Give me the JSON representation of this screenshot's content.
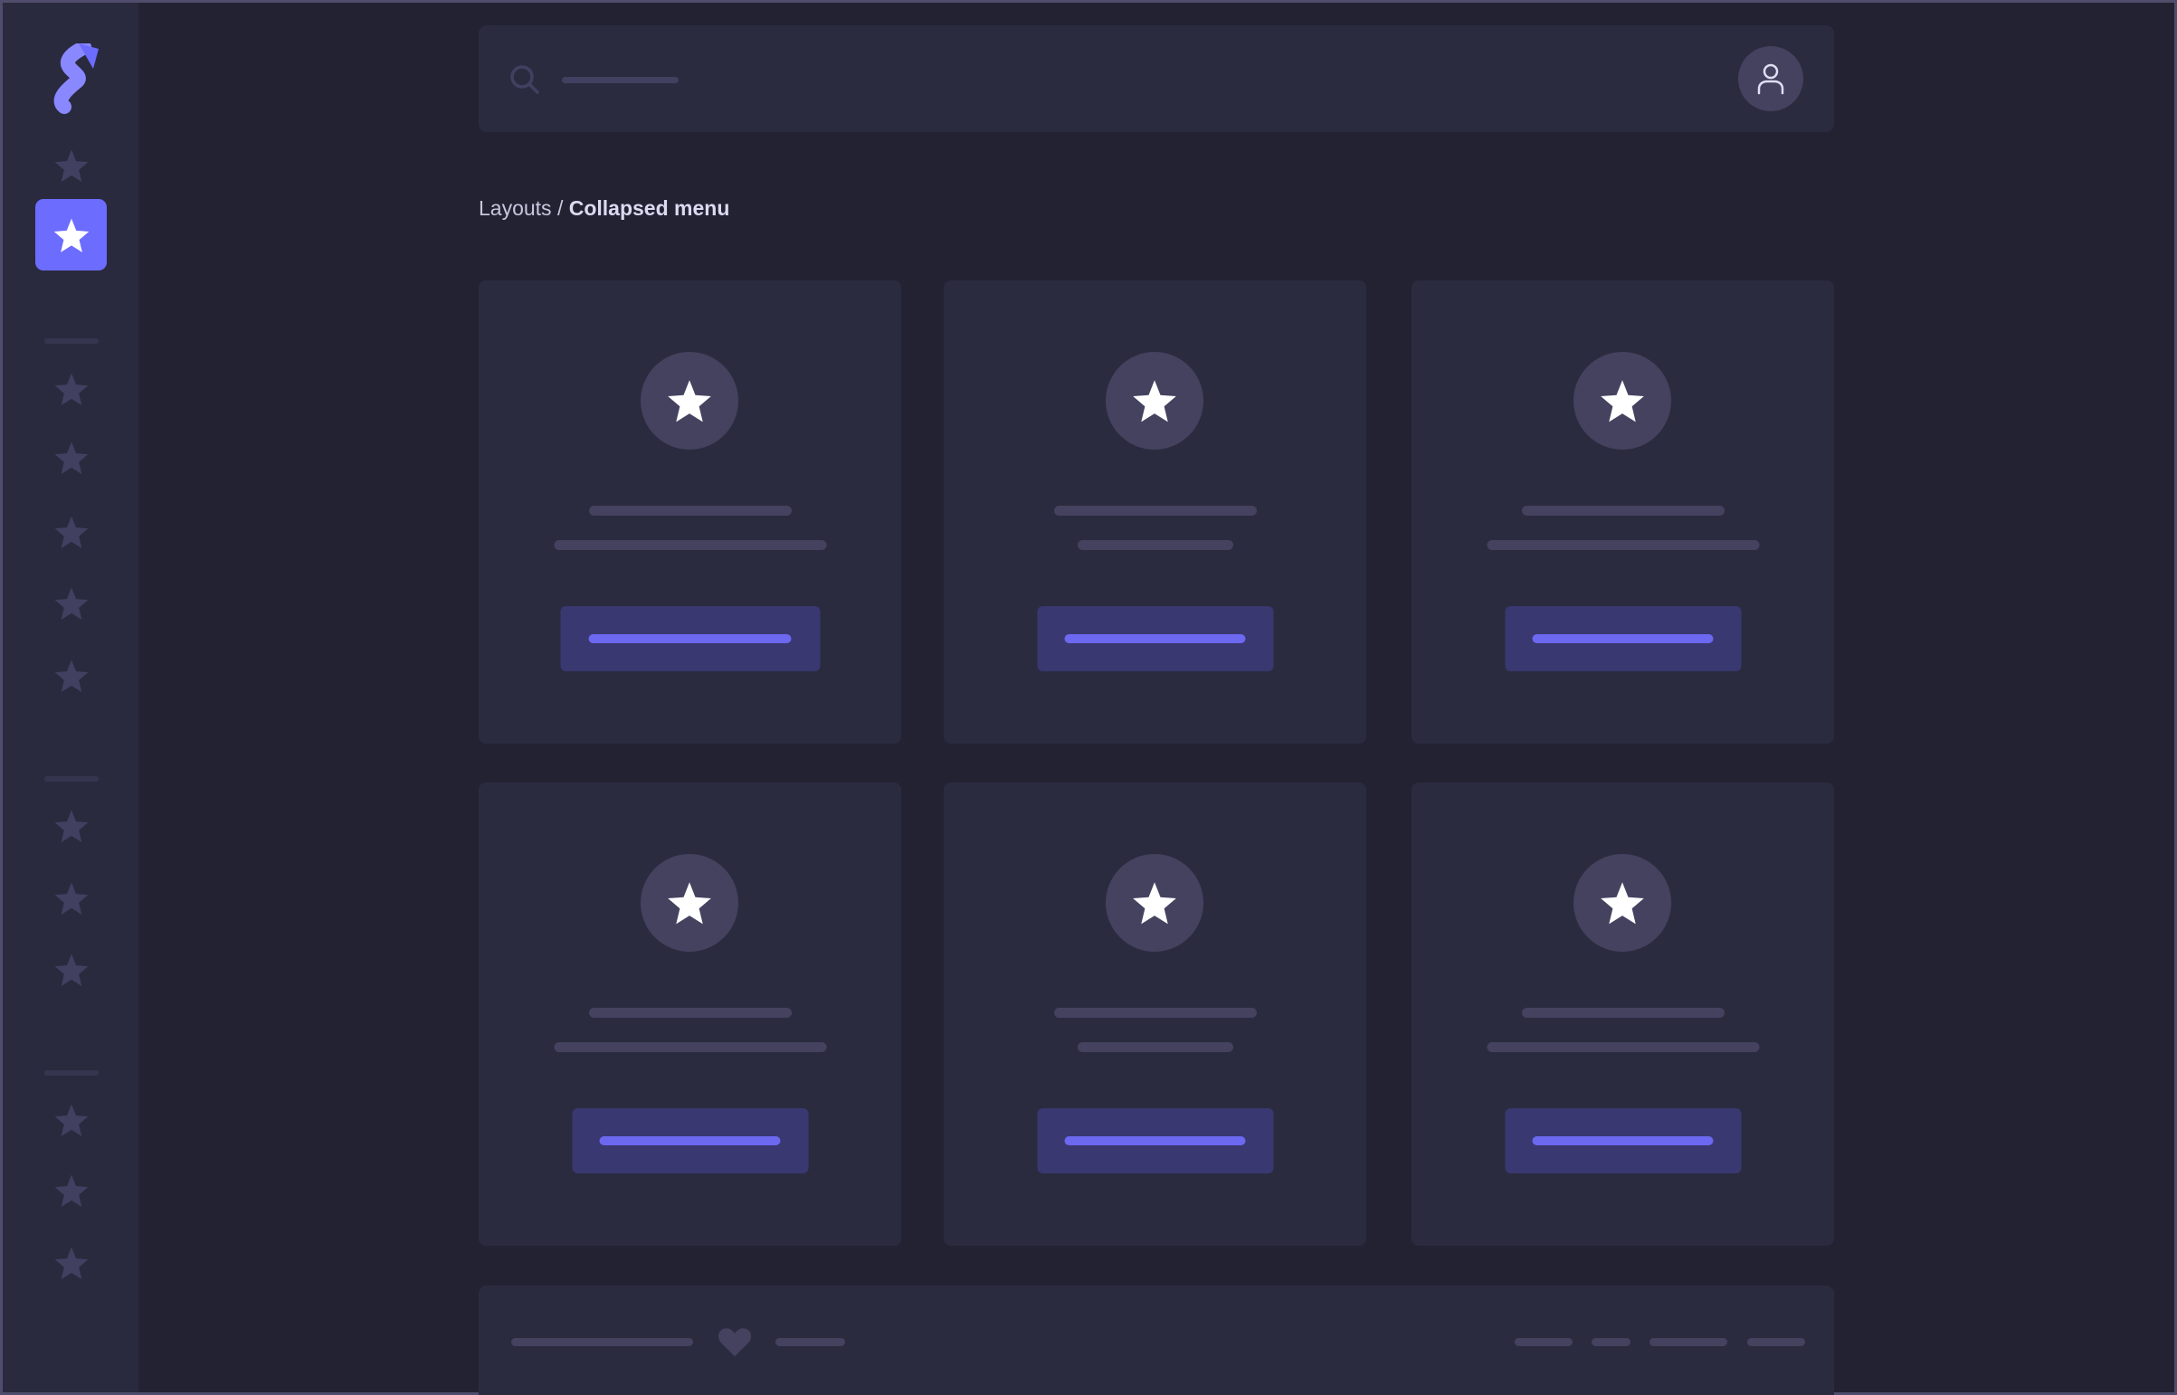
{
  "app": {
    "brand_color": "#6c6cff",
    "background": "#232233"
  },
  "sidebar": {
    "logo": "logo-icon",
    "active_index": 1,
    "icon": "star-icon"
  },
  "header": {
    "search_icon": "search-icon",
    "avatar_icon": "user-icon"
  },
  "breadcrumb": {
    "parent": "Layouts",
    "separator": " / ",
    "current": "Collapsed menu"
  },
  "cards": [
    {
      "icon": "star-icon"
    },
    {
      "icon": "star-icon"
    },
    {
      "icon": "star-icon"
    },
    {
      "icon": "star-icon"
    },
    {
      "icon": "star-icon"
    },
    {
      "icon": "star-icon"
    }
  ],
  "footer": {
    "icon": "heart-icon"
  }
}
